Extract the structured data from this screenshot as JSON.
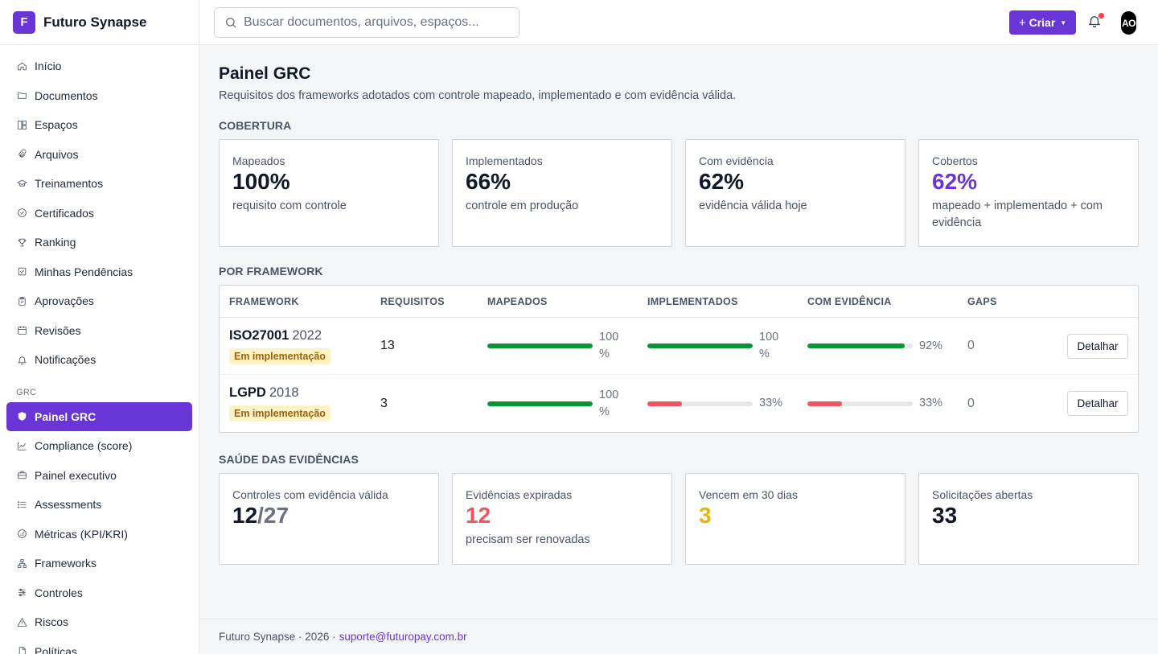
{
  "brand": {
    "logo_letter": "F",
    "name": "Futuro Synapse"
  },
  "nav": {
    "main": [
      {
        "label": "Início",
        "icon": "home-icon"
      },
      {
        "label": "Documentos",
        "icon": "folder-icon"
      },
      {
        "label": "Espaços",
        "icon": "layout-icon"
      },
      {
        "label": "Arquivos",
        "icon": "paperclip-icon"
      },
      {
        "label": "Treinamentos",
        "icon": "graduation-cap-icon"
      },
      {
        "label": "Certificados",
        "icon": "badge-check-icon"
      },
      {
        "label": "Ranking",
        "icon": "trophy-icon"
      },
      {
        "label": "Minhas Pendências",
        "icon": "checkbox-icon"
      },
      {
        "label": "Aprovações",
        "icon": "clipboard-icon"
      },
      {
        "label": "Revisões",
        "icon": "calendar-icon"
      },
      {
        "label": "Notificações",
        "icon": "bell-icon"
      }
    ],
    "section_label": "GRC",
    "grc": [
      {
        "label": "Painel GRC",
        "icon": "shield-icon",
        "active": true
      },
      {
        "label": "Compliance (score)",
        "icon": "chart-line-icon"
      },
      {
        "label": "Painel executivo",
        "icon": "briefcase-icon"
      },
      {
        "label": "Assessments",
        "icon": "list-icon"
      },
      {
        "label": "Métricas (KPI/KRI)",
        "icon": "gauge-icon"
      },
      {
        "label": "Frameworks",
        "icon": "network-icon"
      },
      {
        "label": "Controles",
        "icon": "sliders-icon"
      },
      {
        "label": "Riscos",
        "icon": "alert-triangle-icon"
      },
      {
        "label": "Políticas",
        "icon": "file-icon"
      }
    ]
  },
  "topbar": {
    "search_placeholder": "Buscar documentos, arquivos, espaços...",
    "create_label": "Criar",
    "avatar_initials": "AO"
  },
  "page": {
    "title": "Painel GRC",
    "subtitle": "Requisitos dos frameworks adotados com controle mapeado, implementado e com evidência válida."
  },
  "coverage": {
    "heading": "COBERTURA",
    "cards": [
      {
        "label": "Mapeados",
        "value": "100%",
        "desc": "requisito com controle",
        "color": "#111827"
      },
      {
        "label": "Implementados",
        "value": "66%",
        "desc": "controle em produção",
        "color": "#111827"
      },
      {
        "label": "Com evidência",
        "value": "62%",
        "desc": "evidência válida hoje",
        "color": "#111827"
      },
      {
        "label": "Cobertos",
        "value": "62%",
        "desc": "mapeado + implementado + com evidência",
        "color": "#6a35d6"
      }
    ]
  },
  "frameworks": {
    "heading": "POR FRAMEWORK",
    "columns": [
      "FRAMEWORK",
      "REQUISITOS",
      "MAPEADOS",
      "IMPLEMENTADOS",
      "COM EVIDÊNCIA",
      "GAPS"
    ],
    "rows": [
      {
        "name": "ISO27001",
        "year": "2022",
        "status": "Em implementação",
        "requirements": "13",
        "mapped": {
          "value": 100,
          "label": "100 %"
        },
        "implemented": {
          "value": 100,
          "label": "100 %"
        },
        "evidence": {
          "value": 92,
          "label": "92%"
        },
        "gaps": "0",
        "action": "Detalhar"
      },
      {
        "name": "LGPD",
        "year": "2018",
        "status": "Em implementação",
        "requirements": "3",
        "mapped": {
          "value": 100,
          "label": "100 %"
        },
        "implemented": {
          "value": 33,
          "label": "33%"
        },
        "evidence": {
          "value": 33,
          "label": "33%"
        },
        "gaps": "0",
        "action": "Detalhar"
      }
    ],
    "colors": {
      "good": "#0a9436",
      "bad": "#ef5561"
    }
  },
  "health": {
    "heading": "SAÚDE DAS EVIDÊNCIAS",
    "cards": [
      {
        "label": "Controles com evidência válida",
        "value": "12",
        "total": "/27",
        "desc": "",
        "color": "#111827"
      },
      {
        "label": "Evidências expiradas",
        "value": "12",
        "desc": "precisam ser renovadas",
        "color": "#ef5561"
      },
      {
        "label": "Vencem em 30 dias",
        "value": "3",
        "desc": "",
        "color": "#eab308"
      },
      {
        "label": "Solicitações abertas",
        "value": "33",
        "desc": "",
        "color": "#111827"
      }
    ]
  },
  "footer": {
    "text": "Futuro Synapse · 2026 ·",
    "link": "suporte@futuropay.com.br"
  }
}
